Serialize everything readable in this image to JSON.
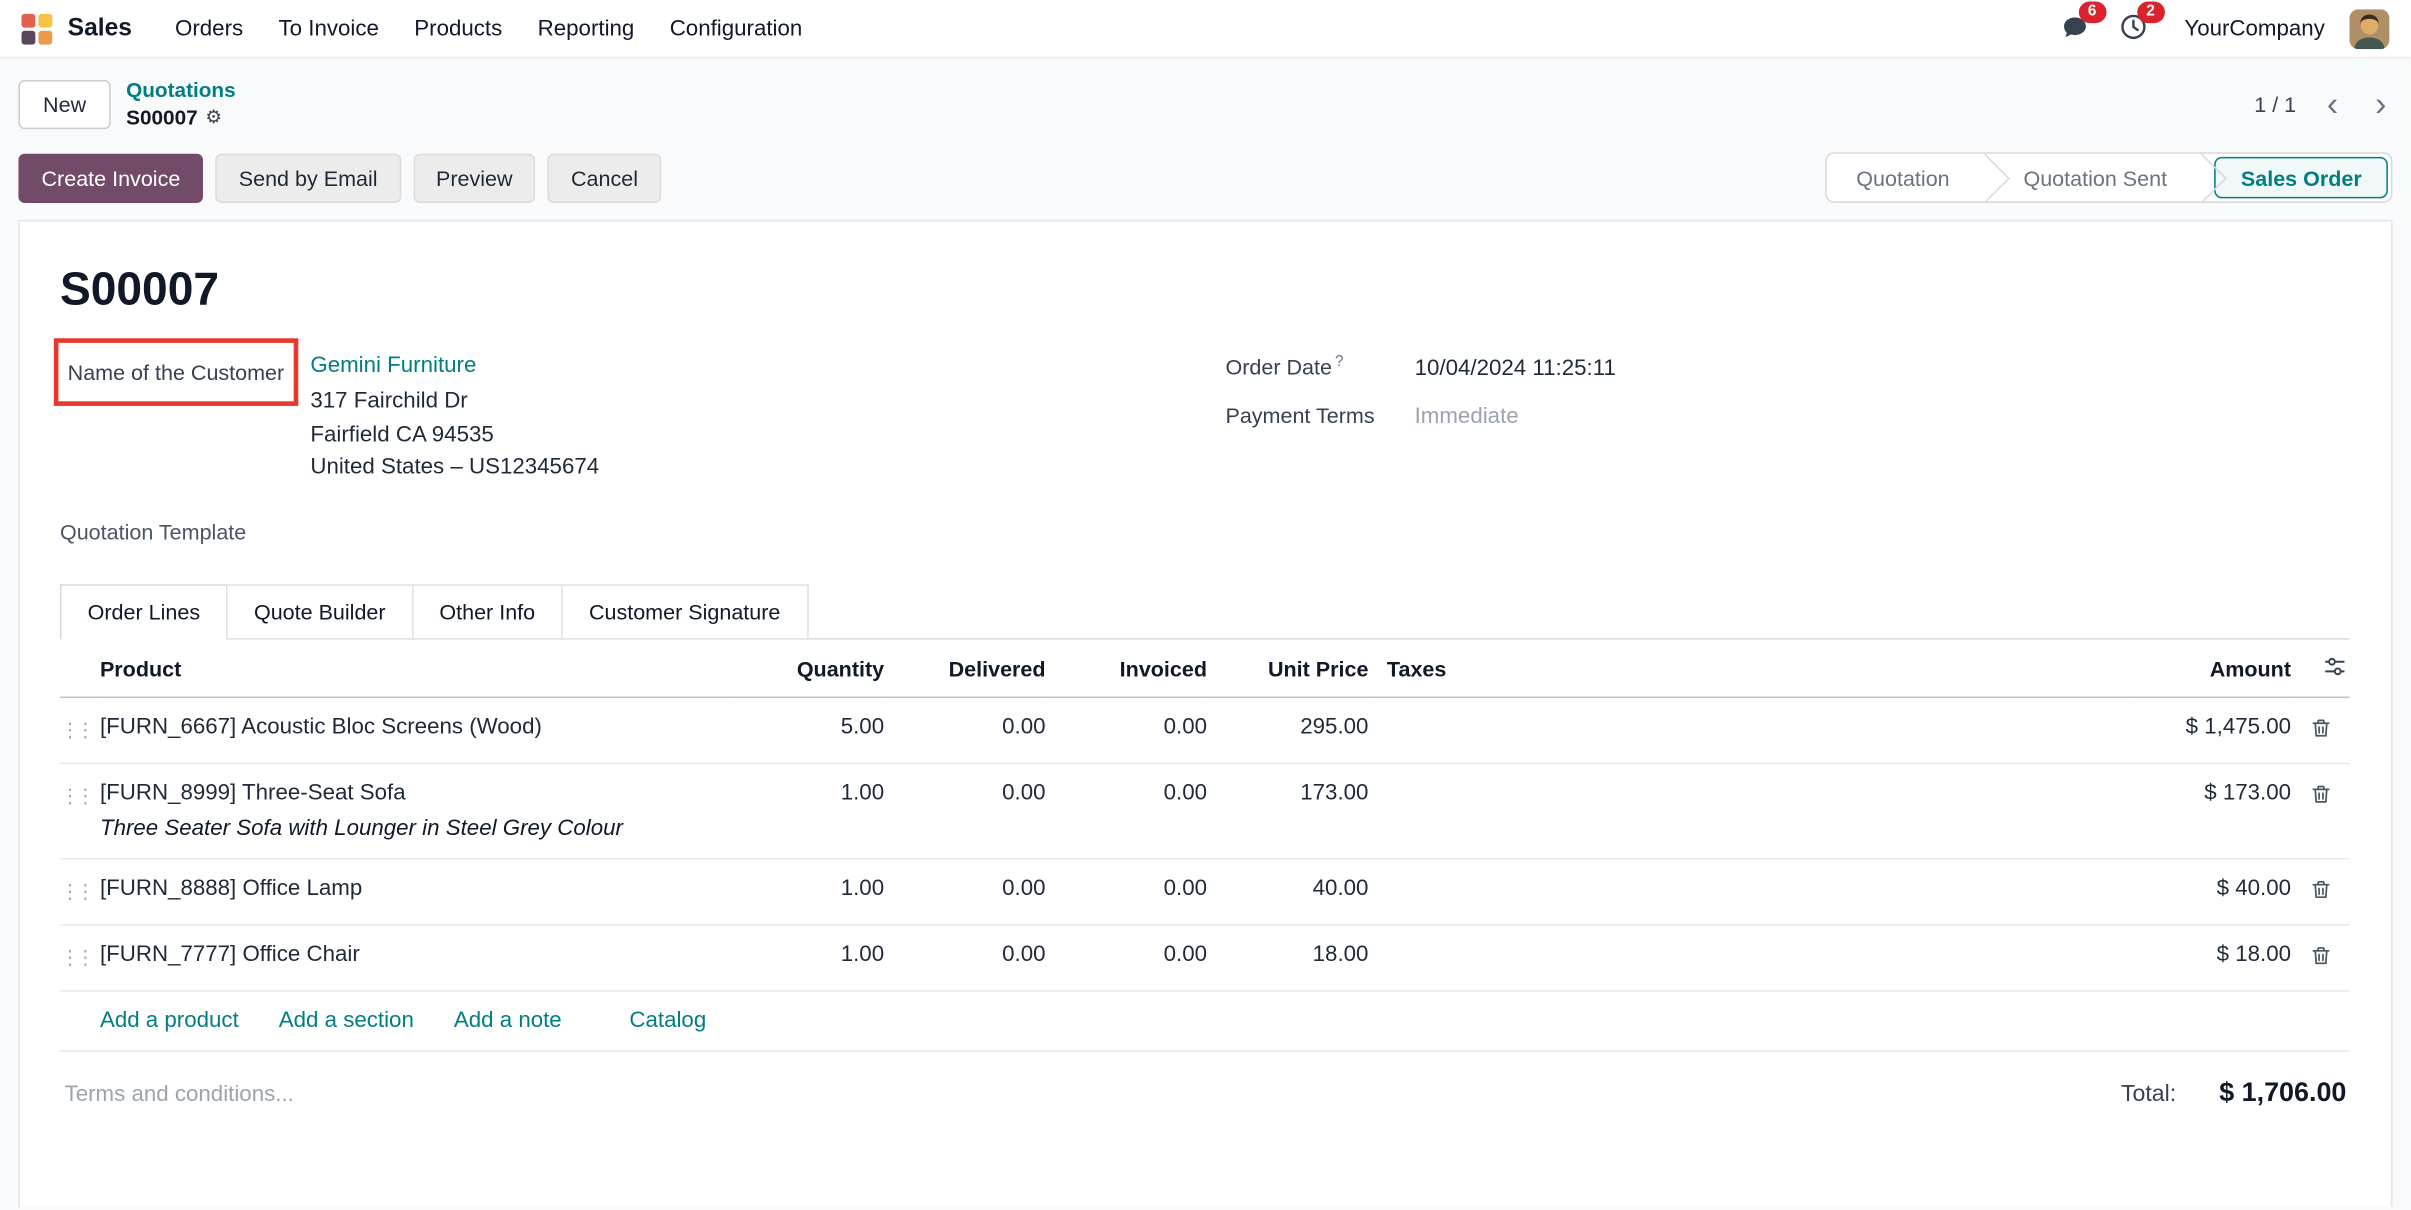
{
  "navbar": {
    "app_name": "Sales",
    "menu_items": [
      "Orders",
      "To Invoice",
      "Products",
      "Reporting",
      "Configuration"
    ],
    "company": "YourCompany",
    "badges": {
      "messages": "6",
      "activities": "2"
    }
  },
  "breadcrumb": {
    "new_label": "New",
    "parent": "Quotations",
    "current": "S00007",
    "pager": "1 / 1"
  },
  "actions": {
    "create_invoice": "Create Invoice",
    "send_by_email": "Send by Email",
    "preview": "Preview",
    "cancel": "Cancel"
  },
  "statusbar": {
    "steps": [
      {
        "label": "Quotation"
      },
      {
        "label": "Quotation Sent"
      },
      {
        "label": "Sales Order"
      }
    ],
    "active_index": 2
  },
  "form": {
    "title": "S00007",
    "customer_label": "Name of the Customer",
    "customer_name": "Gemini Furniture",
    "address_lines": [
      "317 Fairchild Dr",
      "Fairfield CA 94535",
      "United States – US12345674"
    ],
    "order_date_label": "Order Date",
    "order_date_help": "?",
    "order_date_value": "10/04/2024 11:25:11",
    "payment_terms_label": "Payment Terms",
    "payment_terms_value": "Immediate",
    "quotation_template_label": "Quotation Template"
  },
  "tabs": {
    "items": [
      {
        "label": "Order Lines"
      },
      {
        "label": "Quote Builder"
      },
      {
        "label": "Other Info"
      },
      {
        "label": "Customer Signature"
      }
    ],
    "active_index": 0
  },
  "table": {
    "headers": [
      "Product",
      "Quantity",
      "Delivered",
      "Invoiced",
      "Unit Price",
      "Taxes",
      "Amount"
    ],
    "rows": [
      {
        "product": "[FURN_6667] Acoustic Bloc Screens (Wood)",
        "description": "",
        "quantity": "5.00",
        "delivered": "0.00",
        "invoiced": "0.00",
        "unit_price": "295.00",
        "taxes": "",
        "amount": "$ 1,475.00",
        "highlight": false
      },
      {
        "product": "[FURN_8999] Three-Seat Sofa",
        "description": "Three Seater Sofa with Lounger in Steel Grey Colour",
        "quantity": "1.00",
        "delivered": "0.00",
        "invoiced": "0.00",
        "unit_price": "173.00",
        "taxes": "",
        "amount": "$ 173.00",
        "highlight": true
      },
      {
        "product": "[FURN_8888] Office Lamp",
        "description": "",
        "quantity": "1.00",
        "delivered": "0.00",
        "invoiced": "0.00",
        "unit_price": "40.00",
        "taxes": "",
        "amount": "$ 40.00",
        "highlight": false
      },
      {
        "product": "[FURN_7777] Office Chair",
        "description": "",
        "quantity": "1.00",
        "delivered": "0.00",
        "invoiced": "0.00",
        "unit_price": "18.00",
        "taxes": "",
        "amount": "$ 18.00",
        "highlight": false
      }
    ],
    "footer_links": [
      "Add a product",
      "Add a section",
      "Add a note",
      "Catalog"
    ]
  },
  "footer": {
    "terms_placeholder": "Terms and conditions...",
    "total_label": "Total:",
    "total_value": "$ 1,706.00"
  },
  "icons": {
    "gear": "⚙",
    "chevron_left": "‹",
    "chevron_right": "›",
    "drag_handle": "⋮⋮"
  },
  "colors": {
    "primary": "#714B67",
    "link_teal": "#017E84",
    "badge_red": "#D9232D",
    "highlight_red": "#E8372C"
  }
}
